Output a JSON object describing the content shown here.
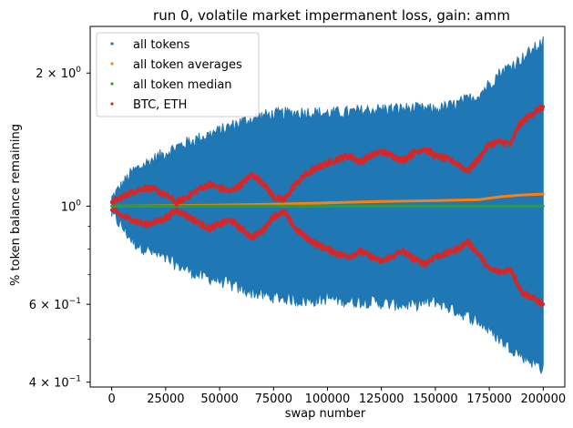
{
  "chart_data": {
    "type": "scatter",
    "title": "run 0, volatile market impermanent loss, gain: amm",
    "xlabel": "swap number",
    "ylabel": "% token balance remaining",
    "xlim": [
      -10000,
      210000
    ],
    "ylim": [
      0.39,
      2.55
    ],
    "yscale": "log",
    "grid": false,
    "legend_position": "top-left",
    "x_ticks": [
      {
        "value": 0,
        "label": "0"
      },
      {
        "value": 25000,
        "label": "25000"
      },
      {
        "value": 50000,
        "label": "50000"
      },
      {
        "value": 75000,
        "label": "75000"
      },
      {
        "value": 100000,
        "label": "100000"
      },
      {
        "value": 125000,
        "label": "125000"
      },
      {
        "value": 150000,
        "label": "150000"
      },
      {
        "value": 175000,
        "label": "175000"
      },
      {
        "value": 200000,
        "label": "200000"
      }
    ],
    "y_ticks": [
      {
        "value": 0.4,
        "base": "4 × 10",
        "exp": "−1"
      },
      {
        "value": 0.6,
        "base": "6 × 10",
        "exp": "−1"
      },
      {
        "value": 1.0,
        "base": "10",
        "exp": "0"
      },
      {
        "value": 2.0,
        "base": "2 × 10",
        "exp": "0"
      }
    ],
    "y_minor_ticks": [
      0.5,
      0.7,
      0.8,
      0.9
    ],
    "series": [
      {
        "name": "all tokens",
        "color": "#1f77b4",
        "kind": "envelope",
        "x": [
          0,
          10000,
          20000,
          30000,
          40000,
          50000,
          60000,
          70000,
          80000,
          90000,
          100000,
          110000,
          120000,
          130000,
          140000,
          150000,
          160000,
          170000,
          180000,
          190000,
          200000
        ],
        "upper": [
          1.04,
          1.2,
          1.28,
          1.36,
          1.42,
          1.48,
          1.55,
          1.6,
          1.62,
          1.63,
          1.62,
          1.63,
          1.65,
          1.66,
          1.66,
          1.65,
          1.7,
          1.78,
          2.0,
          2.15,
          2.35
        ],
        "lower": [
          0.96,
          0.83,
          0.78,
          0.74,
          0.7,
          0.68,
          0.65,
          0.63,
          0.62,
          0.61,
          0.62,
          0.61,
          0.61,
          0.6,
          0.6,
          0.61,
          0.58,
          0.55,
          0.5,
          0.46,
          0.43
        ]
      },
      {
        "name": "all token averages",
        "color": "#ff7f0e",
        "kind": "line",
        "x": [
          0,
          25000,
          50000,
          75000,
          100000,
          125000,
          150000,
          160000,
          170000,
          180000,
          190000,
          200000
        ],
        "values": [
          1.0,
          1.003,
          1.006,
          1.01,
          1.018,
          1.025,
          1.03,
          1.032,
          1.035,
          1.05,
          1.06,
          1.065
        ]
      },
      {
        "name": "all token median",
        "color": "#2ca02c",
        "kind": "line",
        "x": [
          0,
          200000
        ],
        "values": [
          1.0,
          1.0
        ]
      },
      {
        "name": "BTC, ETH",
        "color": "#d62728",
        "kind": "pair",
        "x": [
          0,
          5000,
          10000,
          15000,
          20000,
          25000,
          30000,
          35000,
          40000,
          45000,
          50000,
          55000,
          60000,
          65000,
          70000,
          75000,
          80000,
          85000,
          90000,
          95000,
          100000,
          105000,
          110000,
          115000,
          120000,
          125000,
          130000,
          135000,
          140000,
          145000,
          150000,
          155000,
          160000,
          165000,
          170000,
          175000,
          180000,
          185000,
          188000,
          190000,
          195000,
          200000
        ],
        "upper": [
          1.02,
          1.05,
          1.08,
          1.1,
          1.09,
          1.06,
          1.02,
          1.05,
          1.09,
          1.12,
          1.1,
          1.08,
          1.12,
          1.18,
          1.13,
          1.05,
          1.03,
          1.12,
          1.18,
          1.22,
          1.25,
          1.28,
          1.3,
          1.26,
          1.3,
          1.33,
          1.3,
          1.27,
          1.32,
          1.35,
          1.3,
          1.28,
          1.25,
          1.2,
          1.28,
          1.38,
          1.4,
          1.38,
          1.5,
          1.55,
          1.62,
          1.68
        ],
        "lower": [
          0.98,
          0.95,
          0.93,
          0.91,
          0.92,
          0.94,
          0.98,
          0.95,
          0.92,
          0.89,
          0.91,
          0.93,
          0.89,
          0.85,
          0.88,
          0.95,
          0.97,
          0.89,
          0.85,
          0.82,
          0.8,
          0.78,
          0.77,
          0.79,
          0.77,
          0.75,
          0.77,
          0.79,
          0.76,
          0.74,
          0.77,
          0.78,
          0.8,
          0.83,
          0.78,
          0.72,
          0.71,
          0.72,
          0.67,
          0.64,
          0.62,
          0.6
        ]
      }
    ]
  }
}
